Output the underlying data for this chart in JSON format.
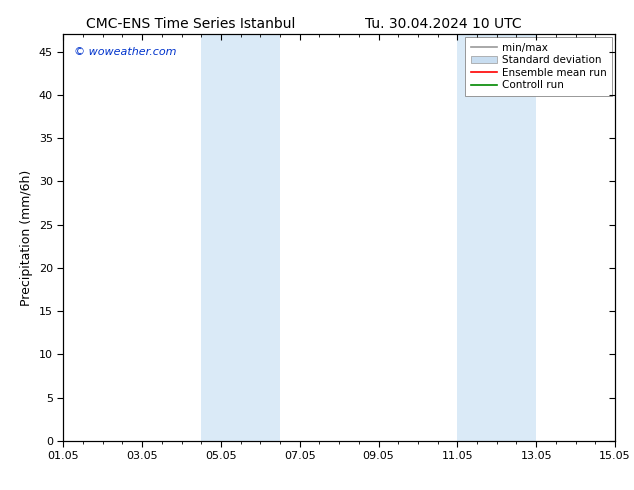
{
  "title_left": "CMC-ENS Time Series Istanbul",
  "title_right": "Tu. 30.04.2024 10 UTC",
  "ylabel": "Precipitation (mm/6h)",
  "background_color": "#ffffff",
  "plot_bg_color": "#ffffff",
  "ylim": [
    0,
    47
  ],
  "yticks": [
    0,
    5,
    10,
    15,
    20,
    25,
    30,
    35,
    40,
    45
  ],
  "xlim": [
    0,
    14
  ],
  "xtick_labels": [
    "01.05",
    "03.05",
    "05.05",
    "07.05",
    "09.05",
    "11.05",
    "13.05",
    "15.05"
  ],
  "xtick_positions": [
    0,
    2,
    4,
    6,
    8,
    10,
    12,
    14
  ],
  "shaded_regions": [
    {
      "xstart": 3.5,
      "xend": 5.5,
      "color": "#daeaf7"
    },
    {
      "xstart": 10.0,
      "xend": 12.0,
      "color": "#daeaf7"
    }
  ],
  "watermark_text": "© woweather.com",
  "watermark_color": "#0033cc",
  "legend_items": [
    {
      "label": "min/max",
      "type": "line",
      "color": "#999999",
      "lw": 1.2
    },
    {
      "label": "Standard deviation",
      "type": "patch",
      "color": "#c8ddf0",
      "edgecolor": "#999999"
    },
    {
      "label": "Ensemble mean run",
      "type": "line",
      "color": "#ff0000",
      "lw": 1.2
    },
    {
      "label": "Controll run",
      "type": "line",
      "color": "#008800",
      "lw": 1.2
    }
  ],
  "title_fontsize": 10,
  "tick_fontsize": 8,
  "ylabel_fontsize": 9,
  "legend_fontsize": 7.5,
  "watermark_fontsize": 8
}
